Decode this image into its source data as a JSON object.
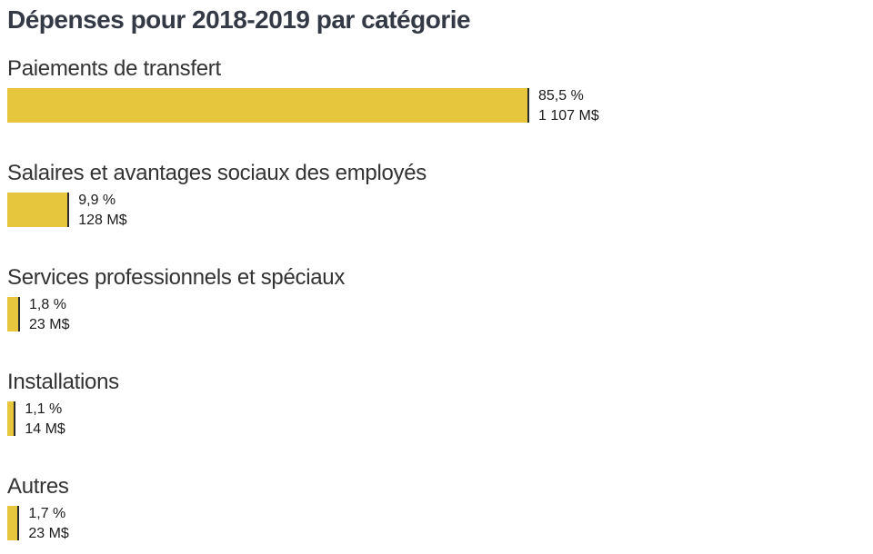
{
  "chart_data": {
    "type": "bar",
    "orientation": "horizontal",
    "title": "Dépenses pour 2018-2019 par catégorie",
    "bar_color": "#e6c63c",
    "bar_end_color": "#2b2b2b",
    "categories": [
      "Paiements de transfert",
      "Salaires et avantages sociaux des employés",
      "Services professionnels et spéciaux",
      "Installations",
      "Autres"
    ],
    "values": [
      85.5,
      9.9,
      1.8,
      1.1,
      1.7
    ],
    "percent_labels": [
      "85,5 %",
      "9,9 %",
      "1,8 %",
      "1,1 %",
      "1,7 %"
    ],
    "amount_labels": [
      "1 107 M$",
      "128 M$",
      "23 M$",
      "14 M$",
      "23 M$"
    ],
    "amounts": [
      1107,
      128,
      23,
      14,
      23
    ]
  }
}
